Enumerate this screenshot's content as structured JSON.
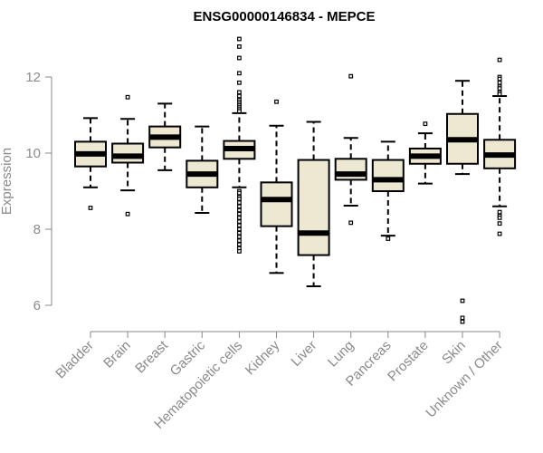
{
  "chart_data": {
    "type": "boxplot",
    "title": "ENSG00000146834 - MEPCE",
    "xlabel": "",
    "ylabel": "Expression",
    "ylim": [
      5.4,
      13.1
    ],
    "yticks": [
      6,
      8,
      10,
      12
    ],
    "colors": {
      "box_fill": "#ede8d2",
      "box_stroke": "#000000",
      "median": "#000000",
      "axis": "#8a8a8a"
    },
    "categories": [
      "Bladder",
      "Brain",
      "Breast",
      "Gastric",
      "Hematopoietic cells",
      "Kidney",
      "Liver",
      "Lung",
      "Pancreas",
      "Prostate",
      "Skin",
      "Unknown / Other"
    ],
    "boxes": [
      {
        "name": "Bladder",
        "whisker_low": 9.1,
        "q1": 9.65,
        "median": 9.98,
        "q3": 10.3,
        "whisker_high": 10.92,
        "outliers": [
          8.56
        ]
      },
      {
        "name": "Brain",
        "whisker_low": 9.02,
        "q1": 9.75,
        "median": 9.92,
        "q3": 10.25,
        "whisker_high": 10.9,
        "outliers": [
          11.47,
          8.4
        ]
      },
      {
        "name": "Breast",
        "whisker_low": 9.55,
        "q1": 10.15,
        "median": 10.42,
        "q3": 10.7,
        "whisker_high": 11.3,
        "outliers": []
      },
      {
        "name": "Gastric",
        "whisker_low": 8.43,
        "q1": 9.1,
        "median": 9.45,
        "q3": 9.8,
        "whisker_high": 10.7,
        "outliers": []
      },
      {
        "name": "Hematopoietic cells",
        "whisker_low": 9.1,
        "q1": 9.85,
        "median": 10.12,
        "q3": 10.32,
        "whisker_high": 11.05,
        "outliers": [
          13.0,
          12.8,
          12.5,
          12.1,
          11.85,
          11.6,
          11.5,
          11.4,
          11.35,
          11.3,
          11.25,
          11.2,
          11.15,
          11.1,
          9.0,
          8.95,
          8.85,
          8.8,
          8.7,
          8.6,
          8.5,
          8.4,
          8.3,
          8.2,
          8.1,
          8.0,
          7.9,
          7.8,
          7.7,
          7.6,
          7.5,
          7.42
        ]
      },
      {
        "name": "Kidney",
        "whisker_low": 6.85,
        "q1": 8.08,
        "median": 8.78,
        "q3": 9.23,
        "whisker_high": 10.72,
        "outliers": [
          11.35
        ]
      },
      {
        "name": "Liver",
        "whisker_low": 6.5,
        "q1": 7.32,
        "median": 7.9,
        "q3": 9.82,
        "whisker_high": 10.82,
        "outliers": []
      },
      {
        "name": "Lung",
        "whisker_low": 8.62,
        "q1": 9.3,
        "median": 9.45,
        "q3": 9.85,
        "whisker_high": 10.4,
        "outliers": [
          12.02,
          8.17
        ]
      },
      {
        "name": "Pancreas",
        "whisker_low": 7.83,
        "q1": 9.0,
        "median": 9.3,
        "q3": 9.82,
        "whisker_high": 10.3,
        "outliers": [
          7.75
        ]
      },
      {
        "name": "Prostate",
        "whisker_low": 9.2,
        "q1": 9.72,
        "median": 9.92,
        "q3": 10.12,
        "whisker_high": 10.52,
        "outliers": [
          10.77
        ]
      },
      {
        "name": "Skin",
        "whisker_low": 9.45,
        "q1": 9.72,
        "median": 10.35,
        "q3": 11.03,
        "whisker_high": 11.9,
        "outliers": [
          6.12,
          5.67,
          5.57
        ]
      },
      {
        "name": "Unknown / Other",
        "whisker_low": 8.6,
        "q1": 9.6,
        "median": 9.95,
        "q3": 10.35,
        "whisker_high": 11.5,
        "outliers": [
          12.45,
          12.0,
          11.95,
          11.85,
          11.75,
          11.7,
          11.6,
          11.55,
          8.45,
          8.35,
          8.3,
          8.15,
          7.88
        ]
      }
    ]
  }
}
